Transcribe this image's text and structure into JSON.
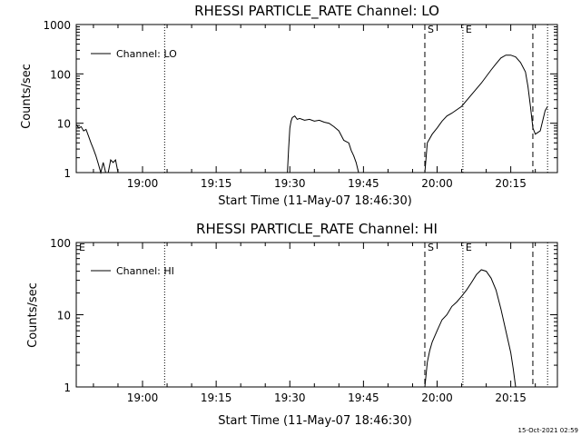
{
  "stamp": "15-Oct-2021 02:59",
  "chart_data": [
    {
      "type": "line",
      "title": "RHESSI PARTICLE_RATE Channel: LO",
      "xlabel": "Start Time (11-May-07 18:46:30)",
      "ylabel": "Counts/sec",
      "yscale": "log",
      "xlim": [
        "18:46:30",
        "20:24:30"
      ],
      "ylim": [
        1,
        1000
      ],
      "x_ticks": [
        "19:00",
        "19:15",
        "19:30",
        "19:45",
        "20:00",
        "20:15"
      ],
      "y_ticks": [
        "1",
        "10",
        "100",
        "1000"
      ],
      "grid": false,
      "legend": {
        "position": "top-left",
        "entries": [
          "Channel: LO"
        ]
      },
      "series": [
        {
          "name": "Channel: LO",
          "segments": [
            {
              "x": [
                "18:46:30",
                "18:47:00",
                "18:47:30",
                "18:48:00",
                "18:48:30",
                "18:49:00",
                "18:49:30",
                "18:50:00",
                "18:50:30",
                "18:51:00",
                "18:51:30",
                "18:52:00",
                "18:52:30",
                "18:53:00",
                "18:53:30",
                "18:54:00",
                "18:54:30",
                "18:55:00"
              ],
              "y": [
                9.5,
                8,
                8.5,
                7,
                7.5,
                5.5,
                4,
                3,
                2.2,
                1.5,
                1,
                1.6,
                1,
                1,
                1.8,
                1.6,
                1.8,
                1
              ]
            },
            {
              "x": [
                "19:29:30",
                "19:29:45",
                "19:30:00",
                "19:30:15",
                "19:30:30",
                "19:31:00",
                "19:31:30",
                "19:32:00",
                "19:33:00",
                "19:34:00",
                "19:35:00",
                "19:36:00",
                "19:37:00",
                "19:38:00",
                "19:39:00",
                "19:40:00",
                "19:41:00",
                "19:42:00",
                "19:42:30",
                "19:43:00",
                "19:43:30",
                "19:44:00"
              ],
              "y": [
                1,
                3,
                8,
                11,
                13,
                14,
                12,
                12.5,
                11.5,
                12,
                11,
                11.5,
                10.5,
                10,
                8.5,
                7,
                4.5,
                4,
                2.8,
                2.2,
                1.6,
                1
              ]
            },
            {
              "x": [
                "19:57:30",
                "19:58:00",
                "19:59:00",
                "20:00:00",
                "20:01:00",
                "20:02:00",
                "20:03:00",
                "20:05:00",
                "20:07:00",
                "20:09:00",
                "20:11:00",
                "20:12:00",
                "20:13:00",
                "20:14:00",
                "20:15:00",
                "20:16:00",
                "20:17:00",
                "20:18:00",
                "20:18:30",
                "20:19:00",
                "20:19:30",
                "20:20:00",
                "20:21:00",
                "20:22:00",
                "20:22:30"
              ],
              "y": [
                1,
                4,
                6,
                8,
                11,
                14,
                16,
                22,
                38,
                65,
                120,
                160,
                210,
                240,
                240,
                220,
                170,
                110,
                55,
                22,
                8,
                6,
                7,
                18,
                22
              ]
            }
          ]
        }
      ],
      "annotations": [
        {
          "type": "dashed-line",
          "x": "19:57:30",
          "label": "S"
        },
        {
          "type": "dotted-line",
          "x": "20:05:15",
          "label": "E"
        },
        {
          "type": "dashed-line",
          "x": "20:19:30",
          "label": ""
        },
        {
          "type": "dotted-line",
          "x": "20:22:30",
          "label": ""
        },
        {
          "type": "dotted-line",
          "x": "19:04:30",
          "label": ""
        }
      ]
    },
    {
      "type": "line",
      "title": "RHESSI PARTICLE_RATE Channel: HI",
      "xlabel": "Start Time (11-May-07 18:46:30)",
      "ylabel": "Counts/sec",
      "yscale": "log",
      "xlim": [
        "18:46:30",
        "20:24:30"
      ],
      "ylim": [
        1,
        100
      ],
      "x_ticks": [
        "19:00",
        "19:15",
        "19:30",
        "19:45",
        "20:00",
        "20:15"
      ],
      "y_ticks": [
        "1",
        "10",
        "100"
      ],
      "grid": false,
      "legend": {
        "position": "top-left",
        "entries": [
          "Channel: HI"
        ]
      },
      "series": [
        {
          "name": "Channel: HI",
          "segments": [
            {
              "x": [
                "19:57:30",
                "19:58:00",
                "19:58:30",
                "19:59:00",
                "20:00:00",
                "20:01:00",
                "20:02:00",
                "20:03:00",
                "20:04:00",
                "20:05:00",
                "20:06:00",
                "20:07:00",
                "20:08:00",
                "20:09:00",
                "20:10:00",
                "20:11:00",
                "20:12:00",
                "20:13:00",
                "20:14:00",
                "20:15:00",
                "20:15:30",
                "20:16:00"
              ],
              "y": [
                1,
                2.2,
                3.2,
                4.2,
                6,
                8.5,
                10,
                13,
                15,
                18,
                22,
                28,
                36,
                42,
                40,
                32,
                22,
                12,
                6,
                3,
                1.8,
                1
              ]
            }
          ]
        }
      ],
      "annotations": [
        {
          "type": "dashed-line",
          "x": "19:57:30",
          "label": "S"
        },
        {
          "type": "dotted-line",
          "x": "20:05:15",
          "label": "E"
        },
        {
          "type": "dashed-line",
          "x": "20:19:30",
          "label": ""
        },
        {
          "type": "dotted-line",
          "x": "20:22:30",
          "label": ""
        },
        {
          "type": "dotted-line",
          "x": "19:04:30",
          "label": ""
        },
        {
          "type": "label",
          "x": "18:46:30",
          "label": "E"
        }
      ]
    }
  ]
}
